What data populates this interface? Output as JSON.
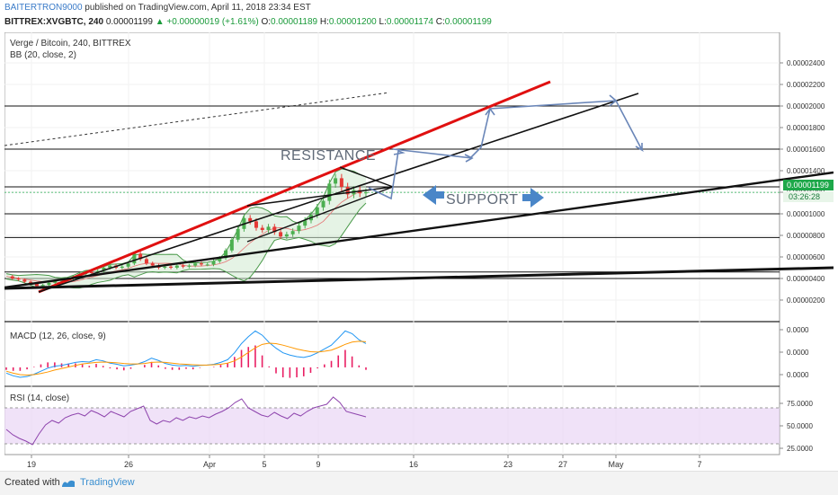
{
  "header": {
    "author": "BAITERTRON9000",
    "published_text": "published on TradingView.com, April 11, 2018 23:34 EST",
    "symbol": "BITTREX:XVGBTC, 240",
    "last": "0.00001199",
    "change": "▲ +0.00000019 (+1.61%)",
    "o_label": "O:",
    "o_value": "0.00001189",
    "h_label": "H:",
    "h_value": "0.00001200",
    "l_label": "L:",
    "l_value": "0.00001174",
    "c_label": "C:",
    "c_value": "0.00001199"
  },
  "main_pane": {
    "title": "Verge / Bitcoin, 240, BITTREX",
    "indicator": "BB (20, close, 2)",
    "resistance_label": "RESISTANCE",
    "support_label": "SUPPORT",
    "price_tag": "0.00001199",
    "countdown_tag": "03:26:28"
  },
  "macd_pane": {
    "title": "MACD (12, 26, close, 9)"
  },
  "rsi_pane": {
    "title": "RSI (14, close)"
  },
  "footer": {
    "created_with": "Created with",
    "brand": "TradingView"
  },
  "colors": {
    "up": "#4caf50",
    "down": "#e53935",
    "resistance": "#e01010",
    "bb": "#4a9a4a",
    "bb_fill": "#cfe9cf",
    "arrow": "#6a86b8",
    "macd": "#2196f3",
    "signal": "#ff9800",
    "hist": "#e91e63",
    "rsi": "#8e44ad",
    "rsi_band": "#ead5f5",
    "price_tag": "#1ea84a"
  },
  "chart_data": {
    "type": "line",
    "x_ticks": [
      "19",
      "26",
      "Apr",
      "5",
      "9",
      "16",
      "23",
      "27",
      "May",
      "7"
    ],
    "y_ticks": [
      "0.00002400",
      "0.00002200",
      "0.00002000",
      "0.00001800",
      "0.00001600",
      "0.00001400",
      "0.00001200",
      "0.00001000",
      "0.00000800",
      "0.00000600",
      "0.00000400",
      "0.00000200"
    ],
    "y_tick_values": [
      2.4e-05,
      2.2e-05,
      2e-05,
      1.8e-05,
      1.6e-05,
      1.4e-05,
      1.2e-05,
      1e-05,
      8e-06,
      6e-06,
      4e-06,
      2e-06
    ],
    "ylim": [
      0,
      2.6e-05
    ],
    "macd_ticks": [
      "0.0000",
      "0.0000",
      "0.0000"
    ],
    "rsi_ticks": [
      "75.0000",
      "50.0000",
      "25.0000"
    ],
    "rsi_ylim": [
      20,
      90
    ],
    "rsi_band": [
      30,
      70
    ],
    "price_series": [
      4.2e-06,
      4e-06,
      3.9e-06,
      3.7e-06,
      3.5e-06,
      3.3e-06,
      3.4e-06,
      3.6e-06,
      3.8e-06,
      3.9e-06,
      4e-06,
      4.2e-06,
      4.4e-06,
      4.6e-06,
      4.5e-06,
      4.7e-06,
      5e-06,
      5.2e-06,
      5e-06,
      5.1e-06,
      5.4e-06,
      6.3e-06,
      5.8e-06,
      5.4e-06,
      5.2e-06,
      5e-06,
      5.1e-06,
      5e-06,
      5.2e-06,
      5.1e-06,
      5.2e-06,
      5.4e-06,
      5.3e-06,
      5.3e-06,
      5.6e-06,
      5.9e-06,
      6.6e-06,
      7.6e-06,
      8.6e-06,
      9.6e-06,
      9.3e-06,
      8.7e-06,
      8.5e-06,
      8.8e-06,
      8.3e-06,
      7.9e-06,
      8.1e-06,
      8.4e-06,
      8.9e-06,
      9.4e-06,
      9.9e-06,
      1.06e-05,
      1.12e-05,
      1.28e-05,
      1.33e-05,
      1.25e-05,
      1.18e-05,
      1.22e-05,
      1.19e-05,
      1.199e-05
    ],
    "rsi_series": [
      46,
      40,
      36,
      33,
      29,
      41,
      51,
      56,
      53,
      59,
      62,
      64,
      61,
      67,
      64,
      60,
      66,
      63,
      60,
      66,
      69,
      72,
      56,
      52,
      56,
      54,
      59,
      56,
      60,
      58,
      61,
      59,
      63,
      66,
      70,
      76,
      80,
      70,
      66,
      62,
      60,
      65,
      61,
      58,
      64,
      61,
      66,
      70,
      72,
      74,
      82,
      76,
      66,
      64,
      62,
      60
    ],
    "macd_series": [
      -0.15,
      -0.22,
      -0.26,
      -0.24,
      -0.18,
      -0.1,
      -0.02,
      0.03,
      0.05,
      0.09,
      0.13,
      0.15,
      0.14,
      0.2,
      0.17,
      0.11,
      0.08,
      0.04,
      0.06,
      0.09,
      0.15,
      0.24,
      0.18,
      0.1,
      0.06,
      0.04,
      0.05,
      0.03,
      0.05,
      0.06,
      0.08,
      0.13,
      0.2,
      0.38,
      0.62,
      0.8,
      0.95,
      0.84,
      0.65,
      0.5,
      0.38,
      0.32,
      0.28,
      0.26,
      0.3,
      0.38,
      0.48,
      0.58,
      0.76,
      0.95,
      0.88,
      0.72,
      0.62
    ],
    "signal_series": [
      -0.1,
      -0.15,
      -0.19,
      -0.2,
      -0.19,
      -0.16,
      -0.12,
      -0.07,
      -0.03,
      0.01,
      0.05,
      0.09,
      0.11,
      0.13,
      0.14,
      0.13,
      0.12,
      0.1,
      0.09,
      0.09,
      0.1,
      0.13,
      0.14,
      0.13,
      0.11,
      0.09,
      0.08,
      0.07,
      0.06,
      0.06,
      0.07,
      0.08,
      0.11,
      0.17,
      0.27,
      0.39,
      0.51,
      0.6,
      0.63,
      0.62,
      0.58,
      0.53,
      0.48,
      0.44,
      0.41,
      0.4,
      0.42,
      0.45,
      0.52,
      0.6,
      0.66,
      0.68,
      0.67
    ],
    "macd_ylim": [
      -0.4,
      1.1
    ]
  }
}
